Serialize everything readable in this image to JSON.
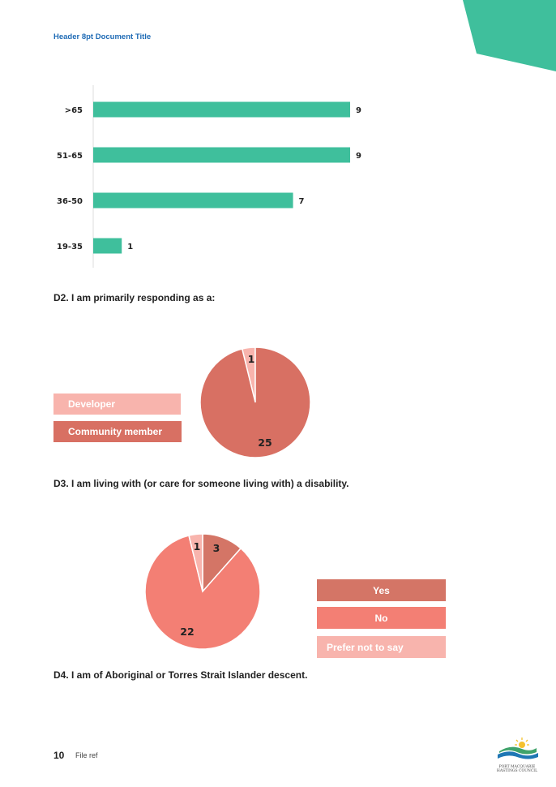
{
  "header": {
    "title": "Header 8pt Document Title"
  },
  "brand_colors": {
    "teal": "#3fbf9c",
    "community": "#d87063",
    "developer": "#f8b4ad",
    "yes": "#d47566",
    "no": "#f37f74",
    "prefer_not": "#f8b4ad"
  },
  "age_chart": {
    "chart_data": {
      "type": "bar",
      "orientation": "horizontal",
      "categories": [
        ">65",
        "51-65",
        "36-50",
        "19-35"
      ],
      "values": [
        9,
        9,
        7,
        1
      ],
      "xlim": [
        0,
        9
      ],
      "grid": false
    }
  },
  "d2": {
    "question": "D2. I am primarily responding as a:",
    "legend": [
      "Developer",
      "Community member"
    ],
    "chart_data": {
      "type": "pie",
      "labels": [
        "Developer",
        "Community member"
      ],
      "values": [
        1,
        25
      ],
      "legend_position": "left"
    }
  },
  "d3": {
    "question": "D3. I am living with (or care for someone living with) a disability.",
    "legend": [
      "Yes",
      "No",
      "Prefer not to say"
    ],
    "chart_data": {
      "type": "pie",
      "labels": [
        "Yes",
        "No",
        "Prefer not to say"
      ],
      "values": [
        3,
        22,
        1
      ],
      "legend_position": "right"
    }
  },
  "d4": {
    "question": "D4. I am of Aboriginal or Torres Strait Islander descent."
  },
  "footer": {
    "page_number": "10",
    "file_ref": "File ref",
    "logo_line1": "PORT MACQUARIE",
    "logo_line2": "HASTINGS COUNCIL"
  }
}
